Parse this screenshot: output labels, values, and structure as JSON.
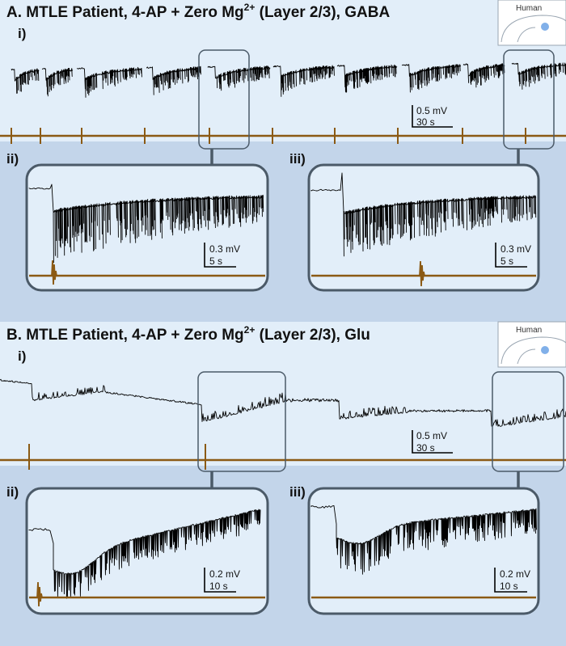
{
  "chart_data": [
    {
      "type": "line",
      "title": "A. MTLE Patient, 4-AP + Zero Mg",
      "title_sup": "2+",
      "title_rest": " (Layer 2/3), GABA",
      "inset_label": "Human",
      "overview": {
        "label": "i)",
        "scale_y": "0.5 mV",
        "scale_x": "30 s",
        "event_count": 9,
        "zoomed_events": [
          4,
          8
        ]
      },
      "zooms": [
        {
          "label": "ii)",
          "scale_y": "0.3 mV",
          "scale_x": "5 s"
        },
        {
          "label": "iii)",
          "scale_y": "0.3 mV",
          "scale_x": "5 s"
        }
      ]
    },
    {
      "type": "line",
      "title": "B. MTLE Patient, 4-AP + Zero Mg",
      "title_sup": "2+",
      "title_rest": " (Layer 2/3), Glu",
      "inset_label": "Human",
      "overview": {
        "label": "i)",
        "scale_y": "0.5 mV",
        "scale_x": "30 s",
        "event_count": 3,
        "zoomed_events": [
          1,
          2
        ]
      },
      "zooms": [
        {
          "label": "ii)",
          "scale_y": "0.2 mV",
          "scale_x": "10 s"
        },
        {
          "label": "iii)",
          "scale_y": "0.2 mV",
          "scale_x": "10 s"
        }
      ]
    }
  ]
}
